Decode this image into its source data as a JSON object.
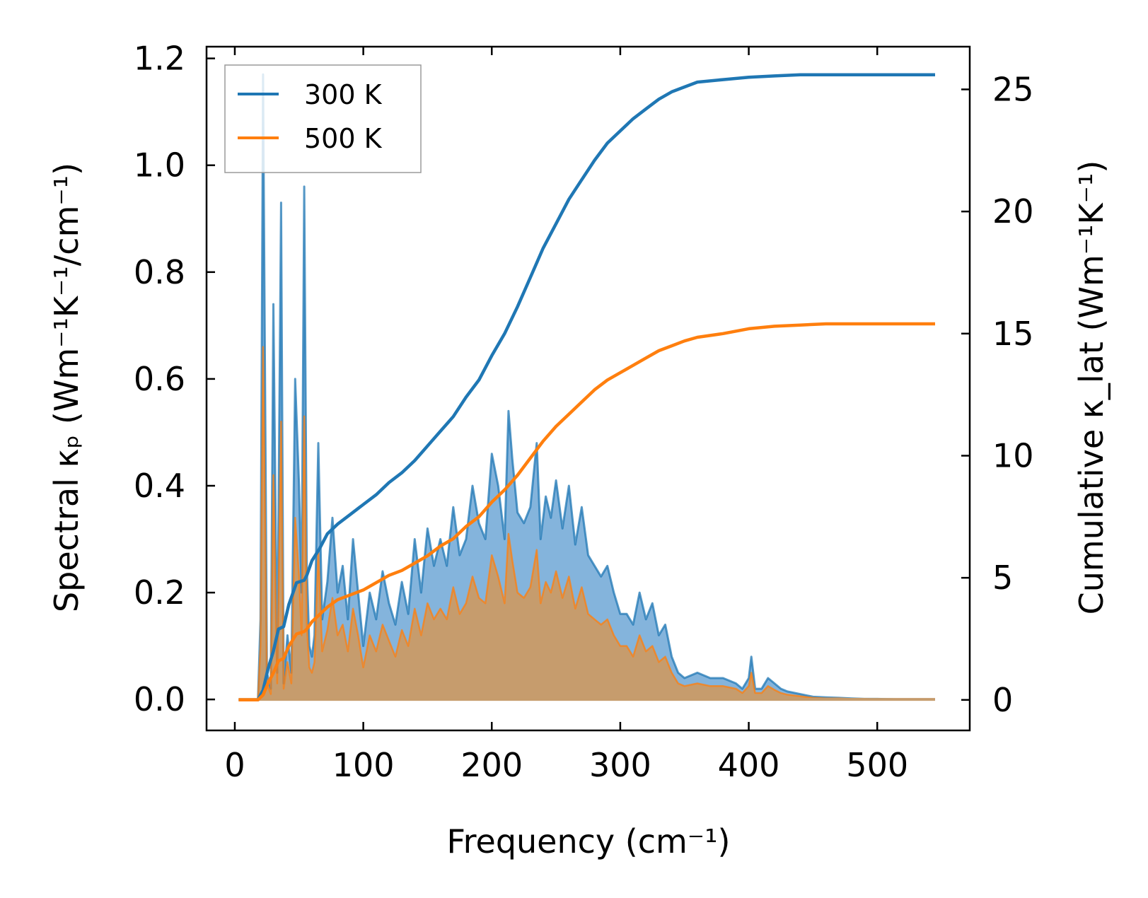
{
  "chart_data": {
    "type": "line",
    "xlabel": "Frequency (cm⁻¹)",
    "ylabel_left": "Spectral κₚ (Wm⁻¹K⁻¹/cm⁻¹)",
    "ylabel_right": "Cumulative κ_lat (Wm⁻¹K⁻¹)",
    "xlim": [
      -22,
      572
    ],
    "ylim_left": [
      -0.058,
      1.222
    ],
    "ylim_right": [
      -1.25,
      26.75
    ],
    "xticks": [
      "0",
      "100",
      "200",
      "300",
      "400",
      "500"
    ],
    "yticks_left": [
      "0.0",
      "0.2",
      "0.4",
      "0.6",
      "0.8",
      "1.0",
      "1.2"
    ],
    "yticks_right": [
      "0",
      "5",
      "10",
      "15",
      "20",
      "25"
    ],
    "legend": {
      "position": "upper-left",
      "entries": [
        "300 K",
        "500 K"
      ]
    },
    "colors": {
      "s300": "#1f77b4",
      "s500": "#ff7f0e",
      "fill300": "#6fa7d6",
      "fill500": "#ffa354",
      "fill_mix": "#c69c6d"
    },
    "spectral": {
      "axis": "left",
      "x": [
        3,
        10,
        18,
        20,
        22,
        25,
        28,
        30,
        33,
        36,
        38,
        41,
        44,
        47,
        50,
        52,
        54,
        56,
        58,
        60,
        62,
        65,
        68,
        72,
        76,
        80,
        84,
        88,
        92,
        96,
        100,
        105,
        110,
        115,
        120,
        125,
        130,
        135,
        140,
        145,
        150,
        155,
        160,
        165,
        170,
        175,
        180,
        185,
        190,
        195,
        200,
        205,
        210,
        213,
        216,
        220,
        225,
        230,
        235,
        238,
        242,
        246,
        250,
        255,
        260,
        265,
        270,
        275,
        280,
        285,
        290,
        295,
        300,
        305,
        310,
        315,
        320,
        325,
        330,
        335,
        340,
        345,
        350,
        360,
        370,
        380,
        390,
        395,
        400,
        402,
        405,
        410,
        415,
        420,
        425,
        430,
        440,
        450,
        460,
        470,
        480,
        490,
        500,
        520,
        545
      ],
      "series": [
        {
          "name": "300 K",
          "values": [
            0.0,
            0.0,
            0.0,
            0.15,
            1.17,
            0.05,
            0.02,
            0.74,
            0.05,
            0.93,
            0.03,
            0.12,
            0.05,
            0.6,
            0.4,
            0.2,
            0.96,
            0.25,
            0.1,
            0.08,
            0.12,
            0.48,
            0.15,
            0.22,
            0.34,
            0.2,
            0.25,
            0.15,
            0.3,
            0.2,
            0.1,
            0.2,
            0.15,
            0.24,
            0.18,
            0.14,
            0.22,
            0.16,
            0.3,
            0.2,
            0.32,
            0.25,
            0.3,
            0.25,
            0.36,
            0.27,
            0.3,
            0.4,
            0.33,
            0.3,
            0.46,
            0.4,
            0.3,
            0.54,
            0.45,
            0.35,
            0.33,
            0.36,
            0.48,
            0.3,
            0.38,
            0.34,
            0.41,
            0.32,
            0.4,
            0.29,
            0.36,
            0.27,
            0.25,
            0.23,
            0.25,
            0.2,
            0.16,
            0.16,
            0.14,
            0.2,
            0.15,
            0.18,
            0.12,
            0.14,
            0.08,
            0.05,
            0.04,
            0.05,
            0.04,
            0.04,
            0.03,
            0.02,
            0.04,
            0.08,
            0.02,
            0.02,
            0.04,
            0.03,
            0.02,
            0.015,
            0.01,
            0.005,
            0.004,
            0.003,
            0.002,
            0.001,
            0.001,
            0.0,
            0.0
          ]
        },
        {
          "name": "500 K",
          "values": [
            0.0,
            0.0,
            0.0,
            0.1,
            0.66,
            0.03,
            0.01,
            0.42,
            0.03,
            0.52,
            0.02,
            0.07,
            0.03,
            0.34,
            0.23,
            0.12,
            0.53,
            0.14,
            0.06,
            0.05,
            0.07,
            0.28,
            0.09,
            0.13,
            0.19,
            0.12,
            0.14,
            0.09,
            0.17,
            0.12,
            0.06,
            0.12,
            0.09,
            0.14,
            0.11,
            0.08,
            0.13,
            0.1,
            0.17,
            0.12,
            0.18,
            0.15,
            0.17,
            0.15,
            0.21,
            0.16,
            0.18,
            0.23,
            0.19,
            0.18,
            0.27,
            0.23,
            0.18,
            0.31,
            0.26,
            0.2,
            0.19,
            0.21,
            0.28,
            0.18,
            0.22,
            0.2,
            0.24,
            0.19,
            0.23,
            0.17,
            0.21,
            0.16,
            0.15,
            0.14,
            0.15,
            0.12,
            0.1,
            0.1,
            0.08,
            0.12,
            0.09,
            0.1,
            0.07,
            0.08,
            0.05,
            0.03,
            0.025,
            0.03,
            0.025,
            0.025,
            0.02,
            0.012,
            0.025,
            0.05,
            0.012,
            0.012,
            0.025,
            0.018,
            0.012,
            0.009,
            0.006,
            0.003,
            0.002,
            0.002,
            0.001,
            0.001,
            0.0,
            0.0,
            0.0
          ]
        }
      ]
    },
    "cumulative": {
      "axis": "right",
      "x": [
        3,
        15,
        18,
        22,
        26,
        30,
        34,
        38,
        42,
        48,
        54,
        56,
        60,
        66,
        72,
        80,
        90,
        100,
        110,
        120,
        130,
        140,
        150,
        160,
        170,
        180,
        190,
        200,
        210,
        220,
        230,
        240,
        250,
        260,
        270,
        280,
        290,
        300,
        310,
        320,
        330,
        340,
        350,
        360,
        380,
        400,
        420,
        440,
        460,
        480,
        500,
        545
      ],
      "series": [
        {
          "name": "300 K",
          "values": [
            0.0,
            0.0,
            0.0,
            0.4,
            1.3,
            2.0,
            2.9,
            3.0,
            3.9,
            4.8,
            4.9,
            5.1,
            5.7,
            6.2,
            6.8,
            7.2,
            7.6,
            8.0,
            8.4,
            8.9,
            9.3,
            9.8,
            10.4,
            11.0,
            11.6,
            12.4,
            13.1,
            14.1,
            15.0,
            16.1,
            17.3,
            18.5,
            19.5,
            20.5,
            21.3,
            22.1,
            22.8,
            23.3,
            23.8,
            24.2,
            24.6,
            24.9,
            25.1,
            25.3,
            25.4,
            25.5,
            25.55,
            25.6,
            25.6,
            25.6,
            25.6,
            25.6
          ]
        },
        {
          "name": "500 K",
          "values": [
            0.0,
            0.0,
            0.0,
            0.2,
            0.7,
            1.1,
            1.6,
            1.7,
            2.2,
            2.7,
            2.8,
            2.9,
            3.2,
            3.5,
            3.8,
            4.1,
            4.3,
            4.5,
            4.8,
            5.1,
            5.3,
            5.6,
            5.9,
            6.3,
            6.6,
            7.1,
            7.5,
            8.1,
            8.6,
            9.2,
            9.9,
            10.6,
            11.2,
            11.7,
            12.2,
            12.7,
            13.1,
            13.4,
            13.7,
            14.0,
            14.3,
            14.5,
            14.7,
            14.85,
            15.0,
            15.2,
            15.3,
            15.35,
            15.4,
            15.4,
            15.4,
            15.4
          ]
        }
      ]
    }
  }
}
